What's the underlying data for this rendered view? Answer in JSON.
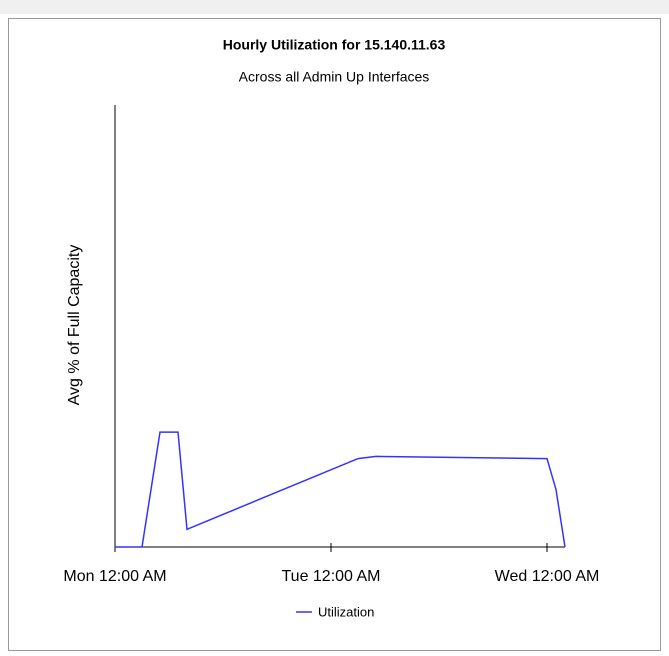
{
  "chart_data": {
    "type": "line",
    "title": "Hourly Utilization for 15.140.11.63",
    "subtitle": "Across all Admin Up Interfaces",
    "y_label": "Avg % of Full Capacity",
    "x": [
      0,
      3,
      4,
      5,
      7,
      8,
      27,
      29,
      48,
      49,
      50
    ],
    "series": [
      {
        "name": "Utilization",
        "color": "#3333ff",
        "values": [
          0,
          0,
          13,
          26,
          26,
          4,
          20,
          20.5,
          20,
          13,
          0
        ]
      }
    ],
    "xlim": [
      0,
      50
    ],
    "xticks": [
      {
        "value": 0,
        "label": "Mon 12:00 AM"
      },
      {
        "value": 24,
        "label": "Tue 12:00 AM"
      },
      {
        "value": 48,
        "label": "Wed 12:00 AM"
      }
    ],
    "ylim": [
      0,
      100
    ],
    "legend": "bottom"
  }
}
